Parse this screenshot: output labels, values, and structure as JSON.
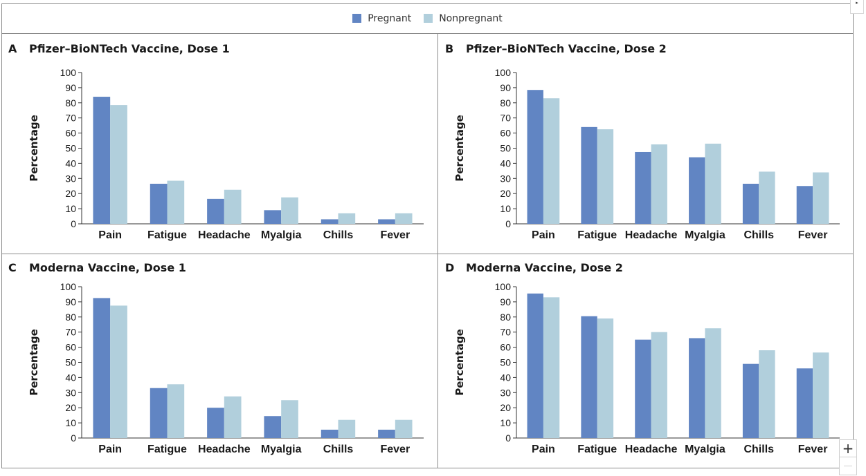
{
  "legend": {
    "items": [
      {
        "label": "Pregnant",
        "color": "#6185c3"
      },
      {
        "label": "Nonpregnant",
        "color": "#b1cfdc"
      }
    ]
  },
  "controls": {
    "zoom_in_icon": "plus-icon",
    "zoom_out_icon": "minus-icon",
    "corner_icon": "triangle-right-icon",
    "zoom_in_label": "+",
    "corner_label": "▸"
  },
  "chart_data": [
    {
      "type": "bar",
      "panel": "A",
      "title": "Pfizer–BioNTech Vaccine, Dose 1",
      "ylabel": "Percentage",
      "xlabel": "",
      "ylim": [
        0,
        100
      ],
      "yticks": [
        0,
        10,
        20,
        30,
        40,
        50,
        60,
        70,
        80,
        90,
        100
      ],
      "categories": [
        "Pain",
        "Fatigue",
        "Headache",
        "Myalgia",
        "Chills",
        "Fever"
      ],
      "series": [
        {
          "name": "Pregnant",
          "values": [
            84,
            26.5,
            16.5,
            9,
            3,
            3
          ]
        },
        {
          "name": "Nonpregnant",
          "values": [
            78.5,
            28.5,
            22.5,
            17.5,
            7,
            7
          ]
        }
      ]
    },
    {
      "type": "bar",
      "panel": "B",
      "title": "Pfizer–BioNTech Vaccine, Dose 2",
      "ylabel": "Percentage",
      "xlabel": "",
      "ylim": [
        0,
        100
      ],
      "yticks": [
        0,
        10,
        20,
        30,
        40,
        50,
        60,
        70,
        80,
        90,
        100
      ],
      "categories": [
        "Pain",
        "Fatigue",
        "Headache",
        "Myalgia",
        "Chills",
        "Fever"
      ],
      "series": [
        {
          "name": "Pregnant",
          "values": [
            88.5,
            64,
            47.5,
            44,
            26.5,
            25
          ]
        },
        {
          "name": "Nonpregnant",
          "values": [
            83,
            62.5,
            52.5,
            53,
            34.5,
            34
          ]
        }
      ]
    },
    {
      "type": "bar",
      "panel": "C",
      "title": "Moderna Vaccine, Dose 1",
      "ylabel": "Percentage",
      "xlabel": "",
      "ylim": [
        0,
        100
      ],
      "yticks": [
        0,
        10,
        20,
        30,
        40,
        50,
        60,
        70,
        80,
        90,
        100
      ],
      "categories": [
        "Pain",
        "Fatigue",
        "Headache",
        "Myalgia",
        "Chills",
        "Fever"
      ],
      "series": [
        {
          "name": "Pregnant",
          "values": [
            92.5,
            33,
            20,
            14.5,
            5.5,
            5.5
          ]
        },
        {
          "name": "Nonpregnant",
          "values": [
            87.5,
            35.5,
            27.5,
            25,
            12,
            12
          ]
        }
      ]
    },
    {
      "type": "bar",
      "panel": "D",
      "title": "Moderna Vaccine, Dose 2",
      "ylabel": "Percentage",
      "xlabel": "",
      "ylim": [
        0,
        100
      ],
      "yticks": [
        0,
        10,
        20,
        30,
        40,
        50,
        60,
        70,
        80,
        90,
        100
      ],
      "categories": [
        "Pain",
        "Fatigue",
        "Headache",
        "Myalgia",
        "Chills",
        "Fever"
      ],
      "series": [
        {
          "name": "Pregnant",
          "values": [
            95.5,
            80.5,
            65,
            66,
            49,
            46
          ]
        },
        {
          "name": "Nonpregnant",
          "values": [
            93,
            79,
            70,
            72.5,
            58,
            56.5
          ]
        }
      ]
    }
  ]
}
